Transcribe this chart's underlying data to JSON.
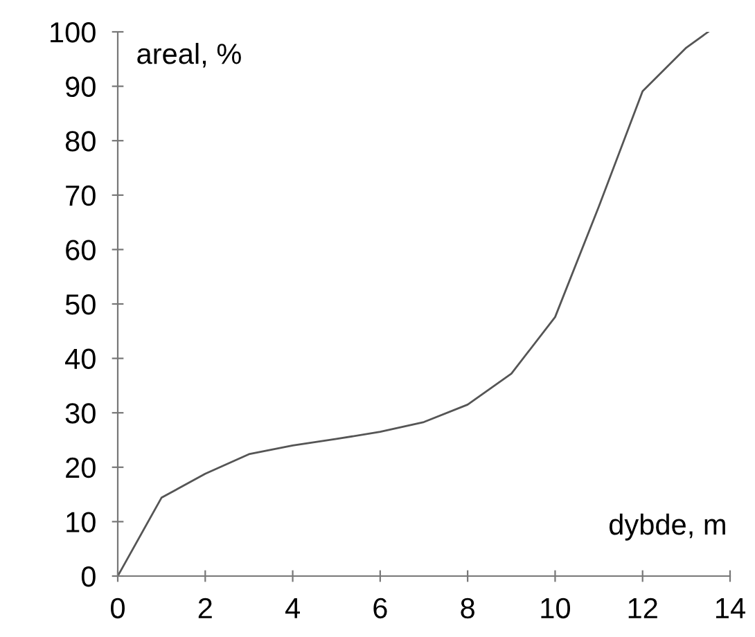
{
  "chart_data": {
    "type": "line",
    "xlabel": "dybde, m",
    "ylabel": "areal, %",
    "x": [
      0,
      1,
      2,
      3,
      4,
      5,
      6,
      7,
      8,
      9,
      10,
      11,
      12,
      13,
      13.5
    ],
    "series": [
      {
        "color": "#555555",
        "values": [
          0,
          14.4,
          18.8,
          22.4,
          24,
          25.2,
          26.5,
          28.3,
          31.5,
          37.2,
          47.6,
          67.9,
          89.1,
          97.1,
          100
        ]
      }
    ],
    "xlim": [
      0,
      14
    ],
    "ylim": [
      0,
      100
    ],
    "xticks": [
      0,
      2,
      4,
      6,
      8,
      10,
      12,
      14
    ],
    "yticks": [
      0,
      10,
      20,
      30,
      40,
      50,
      60,
      70,
      80,
      90,
      100
    ],
    "grid": false,
    "legend": false,
    "marker": "none",
    "line_style": "solid"
  }
}
